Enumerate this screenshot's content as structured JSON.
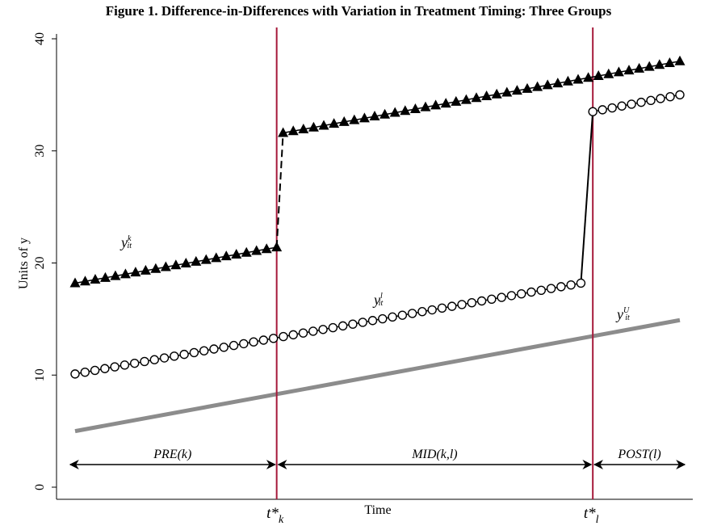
{
  "title": "Figure 1. Difference-in-Differences with Variation in Treatment Timing: Three Groups",
  "chart_data": {
    "type": "line",
    "title": "Figure 1. Difference-in-Differences with Variation in Treatment Timing: Three Groups",
    "xlabel": "Time",
    "ylabel": "Units of y",
    "ylim": [
      0,
      40
    ],
    "yticks": [
      0,
      10,
      20,
      30,
      40
    ],
    "xlim": [
      0,
      66
    ],
    "grid": false,
    "treatment_times": [
      {
        "x": 22,
        "label_main": "t*",
        "label_sub": "k"
      },
      {
        "x": 56.5,
        "label_main": "t*",
        "label_sub": "l"
      }
    ],
    "periods": [
      {
        "label": "PRE(k)",
        "from": 0,
        "to": 22
      },
      {
        "label": "MID(k,l)",
        "from": 22,
        "to": 56.5
      },
      {
        "label": "POST(l)",
        "from": 56.5,
        "to": 66
      }
    ],
    "series": [
      {
        "id": "k",
        "label_main": "y",
        "label_sup": "k",
        "label_sub": "it",
        "marker": "triangle",
        "color": "#000000",
        "pre": {
          "x_start": 0,
          "x_end": 22,
          "y_start": 18.2,
          "y_end": 21.4,
          "points": 21
        },
        "post": {
          "x_start": 22.7,
          "x_end": 66,
          "y_start": 31.6,
          "y_end": 38.0,
          "points": 40
        },
        "jump_style": "dashed"
      },
      {
        "id": "l",
        "label_main": "y",
        "label_sup": "l",
        "label_sub": "it",
        "marker": "circle",
        "color": "#000000",
        "pre": {
          "x_start": 0,
          "x_end": 55.2,
          "y_start": 10.1,
          "y_end": 18.2,
          "points": 52
        },
        "post": {
          "x_start": 56.5,
          "x_end": 66,
          "y_start": 33.5,
          "y_end": 35.0,
          "points": 10
        },
        "jump_style": "solid"
      },
      {
        "id": "U",
        "label_main": "y",
        "label_sup": "U",
        "label_sub": "it",
        "marker": "none",
        "color": "#8c8c8c",
        "line": {
          "x_start": 0,
          "x_end": 66,
          "y_start": 5.0,
          "y_end": 14.9
        }
      }
    ],
    "colors": {
      "vline": "#a6193a",
      "untreated": "#8c8c8c",
      "markers": "#000000"
    }
  }
}
